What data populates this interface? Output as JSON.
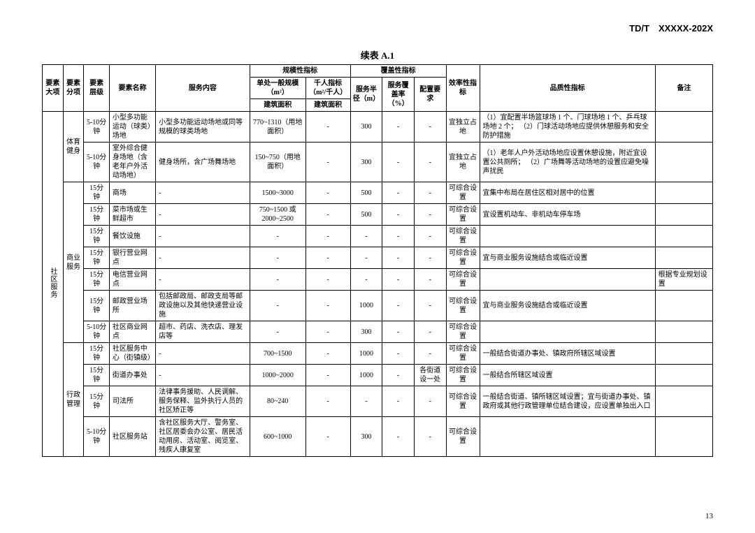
{
  "doc_code": "TD/T　XXXXX-202X",
  "table_title": "续表 A.1",
  "page_number": "13",
  "headers": {
    "h1": "要素大项",
    "h2": "要素分项",
    "h3": "要素层级",
    "h4": "要素名称",
    "h5": "服务内容",
    "h6": "规模性指标",
    "h7": "覆盖性指标",
    "h8": "效率性指标",
    "h9": "品质性指标",
    "h10": "备注",
    "h6a": "单处一般规模（m²）",
    "h6b": "千人指标（m²/千人）",
    "h7a": "服务半径（m）",
    "h7b": "服务覆盖率（%）",
    "h7c": "配置要求",
    "h6a2": "建筑面积",
    "h6b2": "建筑面积"
  },
  "major": "社区服务",
  "cat": {
    "sport": "体育健身",
    "biz": "商业服务",
    "admin": "行政管理"
  },
  "rows": [
    {
      "lvl": "5-10分钟",
      "name": "小型多功能运动（球类）场地",
      "svc": "小型多功能运动场地或同等规模的球类场地",
      "scale": "770~1310（用地面积）",
      "per": "-",
      "radius": "300",
      "cov": "-",
      "cfg": "-",
      "eff": "宜独立占地",
      "qual": "（1）宜配置半场篮球场 1 个、门球场地 1 个、乒乓球场地 2 个；\n（2）门球活动场地应提供休憩服务和安全防护措施",
      "note": ""
    },
    {
      "lvl": "5-10分钟",
      "name": "室外综合健身场地（含老年户外活动场地）",
      "svc": "健身场所，含广场舞场地",
      "scale": "150~750（用地面积）",
      "per": "-",
      "radius": "300",
      "cov": "-",
      "cfg": "-",
      "eff": "宜独立占地",
      "qual": "（1）老年人户外活动场地应设置休憩设施，附近宜设置公共厕所；\n（2）广场舞等活动场地的设置应避免噪声扰民",
      "note": ""
    },
    {
      "lvl": "15分钟",
      "name": "商场",
      "svc": "-",
      "scale": "1500~3000",
      "per": "-",
      "radius": "500",
      "cov": "-",
      "cfg": "-",
      "eff": "可综合设置",
      "qual": "宜集中布局在居住区相对居中的位置",
      "note": ""
    },
    {
      "lvl": "15分钟",
      "name": "菜市场或生鲜超市",
      "svc": "-",
      "scale": "750~1500 或 2000~2500",
      "per": "-",
      "radius": "500",
      "cov": "-",
      "cfg": "-",
      "eff": "可综合设置",
      "qual": "宜设置机动车、非机动车停车场",
      "note": ""
    },
    {
      "lvl": "15分钟",
      "name": "餐饮设施",
      "svc": "-",
      "scale": "-",
      "per": "-",
      "radius": "-",
      "cov": "-",
      "cfg": "-",
      "eff": "可综合设置",
      "qual": "",
      "note": ""
    },
    {
      "lvl": "15分钟",
      "name": "银行营业网点",
      "svc": "-",
      "scale": "-",
      "per": "-",
      "radius": "-",
      "cov": "-",
      "cfg": "-",
      "eff": "可综合设置",
      "qual": "宜与商业服务设施结合或临近设置",
      "note": ""
    },
    {
      "lvl": "15分钟",
      "name": "电信营业网点",
      "svc": "-",
      "scale": "-",
      "per": "-",
      "radius": "-",
      "cov": "-",
      "cfg": "-",
      "eff": "可综合设置",
      "qual": "",
      "note": "根据专业规划设置"
    },
    {
      "lvl": "15分钟",
      "name": "邮政营业场所",
      "svc": "包括邮政局、邮政支局等邮政设施以及其他快递营业设施",
      "scale": "-",
      "per": "-",
      "radius": "1000",
      "cov": "-",
      "cfg": "-",
      "eff": "可综合设置",
      "qual": "宜与商业服务设施结合或临近设置",
      "note": ""
    },
    {
      "lvl": "5-10分钟",
      "name": "社区商业网点",
      "svc": "超市、药店、洗衣店、理发店等",
      "scale": "-",
      "per": "-",
      "radius": "300",
      "cov": "-",
      "cfg": "-",
      "eff": "可综合设置",
      "qual": "",
      "note": ""
    },
    {
      "lvl": "15分钟",
      "name": "社区服务中心（街镇级）",
      "svc": "-",
      "scale": "700~1500",
      "per": "-",
      "radius": "1000",
      "cov": "-",
      "cfg": "-",
      "eff": "可综合设置",
      "qual": "一般结合街道办事处、镇政府所辖区域设置",
      "note": ""
    },
    {
      "lvl": "15分钟",
      "name": "街道办事处",
      "svc": "-",
      "scale": "1000~2000",
      "per": "-",
      "radius": "1000",
      "cov": "-",
      "cfg": "各街道设一处",
      "eff": "可综合设置",
      "qual": "一般结合所辖区域设置",
      "note": ""
    },
    {
      "lvl": "15分钟",
      "name": "司法所",
      "svc": "法律事务援助、人民调解、服务保释、监外执行人员的社区矫正等",
      "scale": "80~240",
      "per": "-",
      "radius": "-",
      "cov": "-",
      "cfg": "-",
      "eff": "可综合设置",
      "qual": "一般结合街道、镇所辖区域设置；宜与街道办事处、镇政府或其他行政管理单位结合建设，应设置单独出入口",
      "note": ""
    },
    {
      "lvl": "5-10分钟",
      "name": "社区服务站",
      "svc": "含社区服务大厅、警务室、社区居委会办公室、居民活动用房、活动室、阅览室、残疾人康复室",
      "scale": "600~1000",
      "per": "-",
      "radius": "300",
      "cov": "-",
      "cfg": "-",
      "eff": "可综合设置",
      "qual": "",
      "note": ""
    }
  ]
}
